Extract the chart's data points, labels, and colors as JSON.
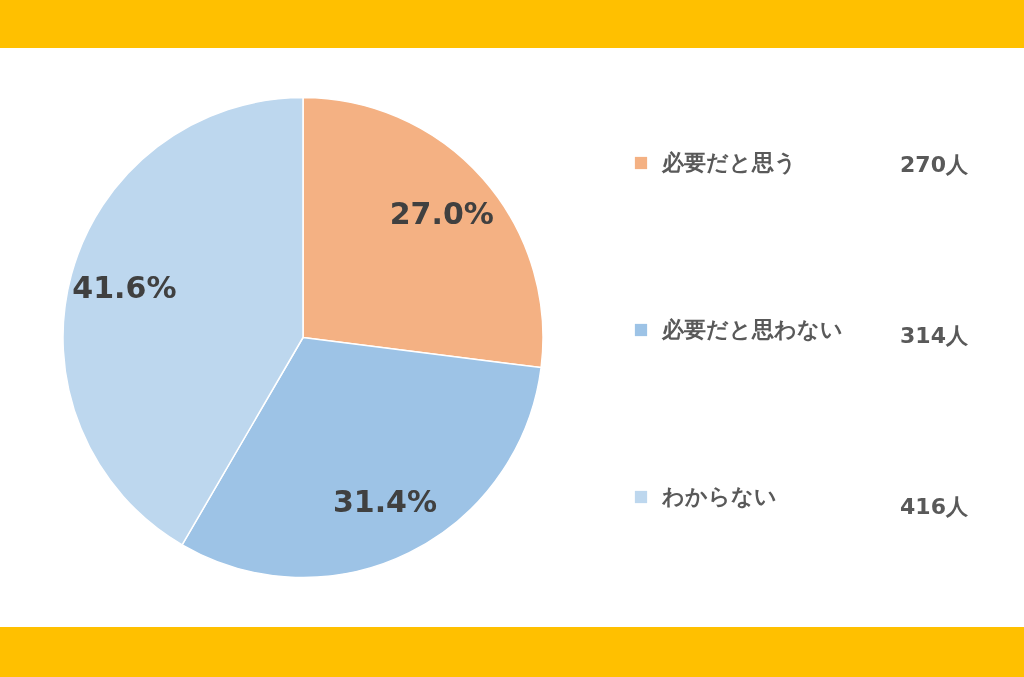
{
  "chart_data": {
    "type": "pie",
    "categories": [
      "必要だと思う",
      "必要だと思わない",
      "わからない"
    ],
    "values": [
      27.0,
      31.4,
      41.6
    ],
    "value_labels": [
      "27.0%",
      "31.4%",
      "41.6%"
    ],
    "colors": [
      "#f4b183",
      "#9dc3e6",
      "#bdd7ee"
    ],
    "legend": "right",
    "annotations": [
      "270人",
      "314人",
      "416人"
    ]
  }
}
